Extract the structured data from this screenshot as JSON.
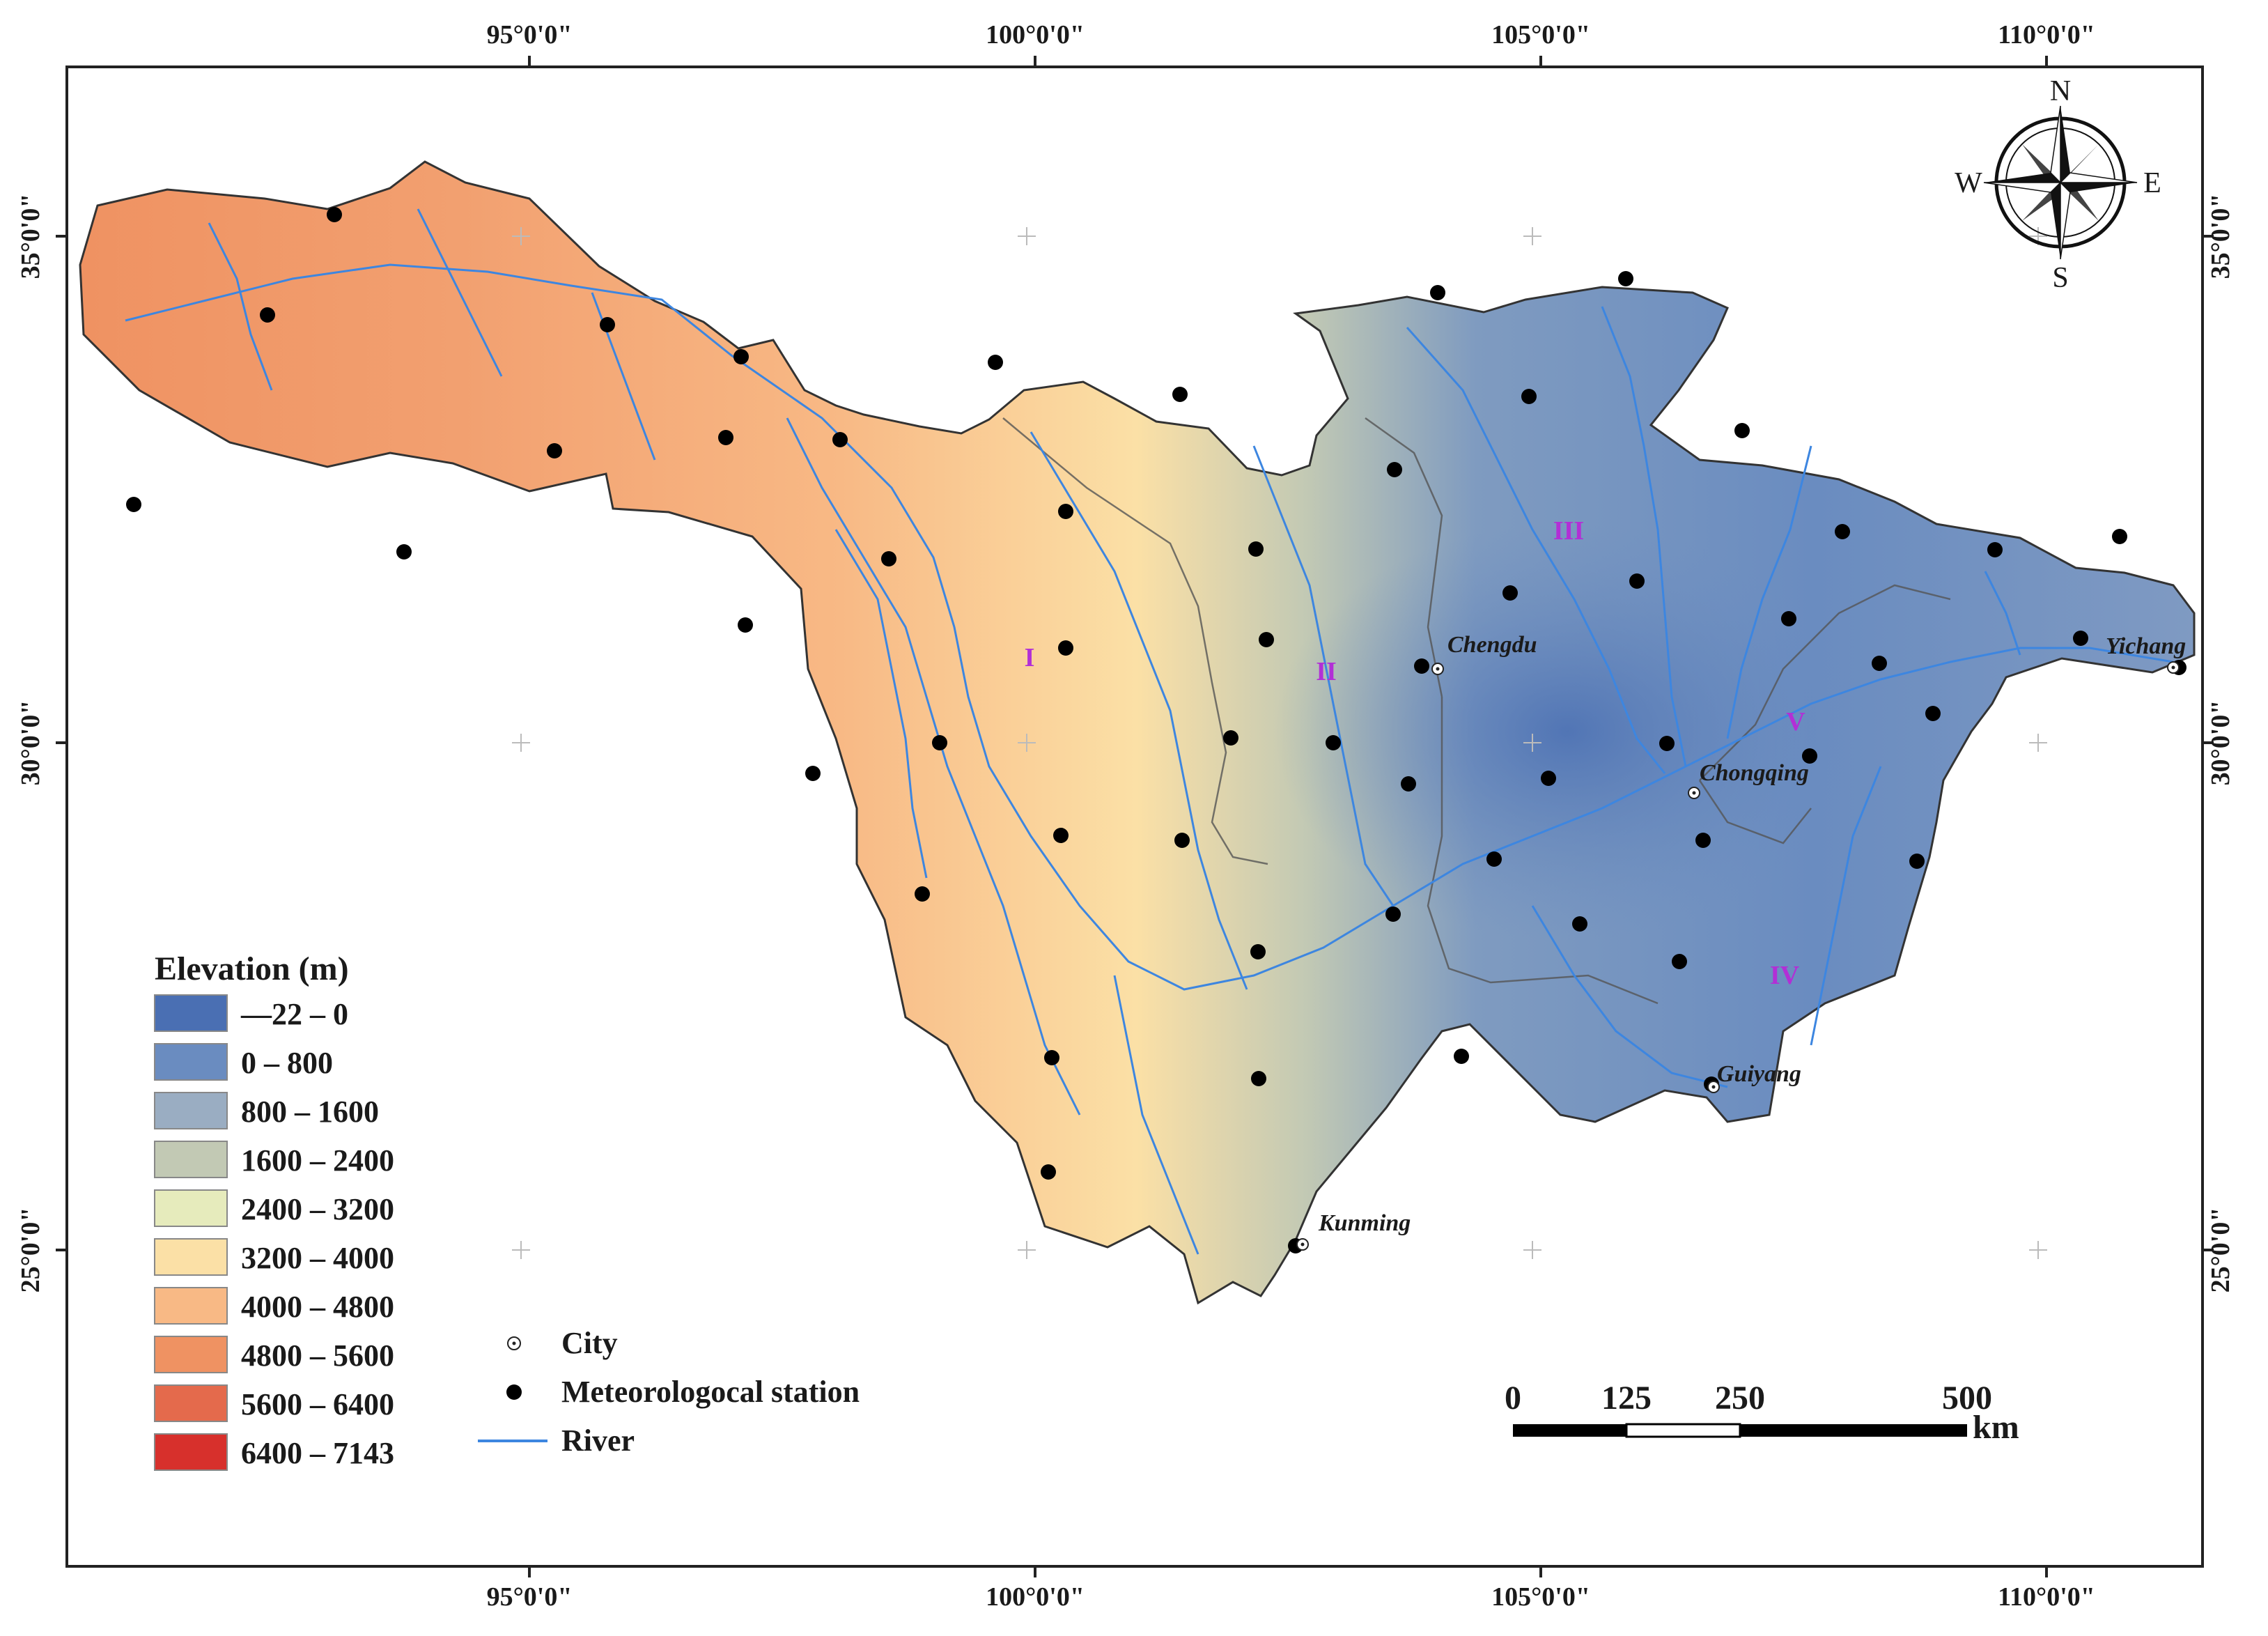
{
  "map": {
    "lon_ticks": [
      "95°0'0\"",
      "100°0'0\"",
      "105°0'0\"",
      "110°0'0\""
    ],
    "lat_ticks": [
      "35°0'0\"",
      "30°0'0\"",
      "25°0'0\""
    ],
    "compass": {
      "n": "N",
      "s": "S",
      "e": "E",
      "w": "W"
    },
    "cities": [
      "Chengdu",
      "Chongqing",
      "Guiyang",
      "Kunming",
      "Yichang"
    ],
    "regions": [
      "I",
      "II",
      "III",
      "IV",
      "V"
    ]
  },
  "legend": {
    "title": "Elevation (m)",
    "classes": [
      {
        "label": "—22 – 0",
        "color": "#4a6fb3"
      },
      {
        "label": "0 – 800",
        "color": "#6a8cc0"
      },
      {
        "label": "800 – 1600",
        "color": "#9aadc2"
      },
      {
        "label": "1600 – 2400",
        "color": "#c2c9b4"
      },
      {
        "label": "2400 – 3200",
        "color": "#e6ebbc"
      },
      {
        "label": "3200 – 4000",
        "color": "#fbe0a6"
      },
      {
        "label": "4000 – 4800",
        "color": "#f8b985"
      },
      {
        "label": "4800 – 5600",
        "color": "#ef9262"
      },
      {
        "label": "5600 – 6400",
        "color": "#e46a4c"
      },
      {
        "label": "6400 – 7143",
        "color": "#d7302c"
      }
    ],
    "symbols": [
      {
        "label": "City",
        "icon": "city-icon"
      },
      {
        "label": "Meteorologocal station",
        "icon": "station-icon"
      },
      {
        "label": "River",
        "icon": "river-icon",
        "color": "#3d86e0"
      }
    ]
  },
  "scale_bar": {
    "ticks": [
      "0",
      "125",
      "250",
      "500"
    ],
    "unit": "km"
  }
}
